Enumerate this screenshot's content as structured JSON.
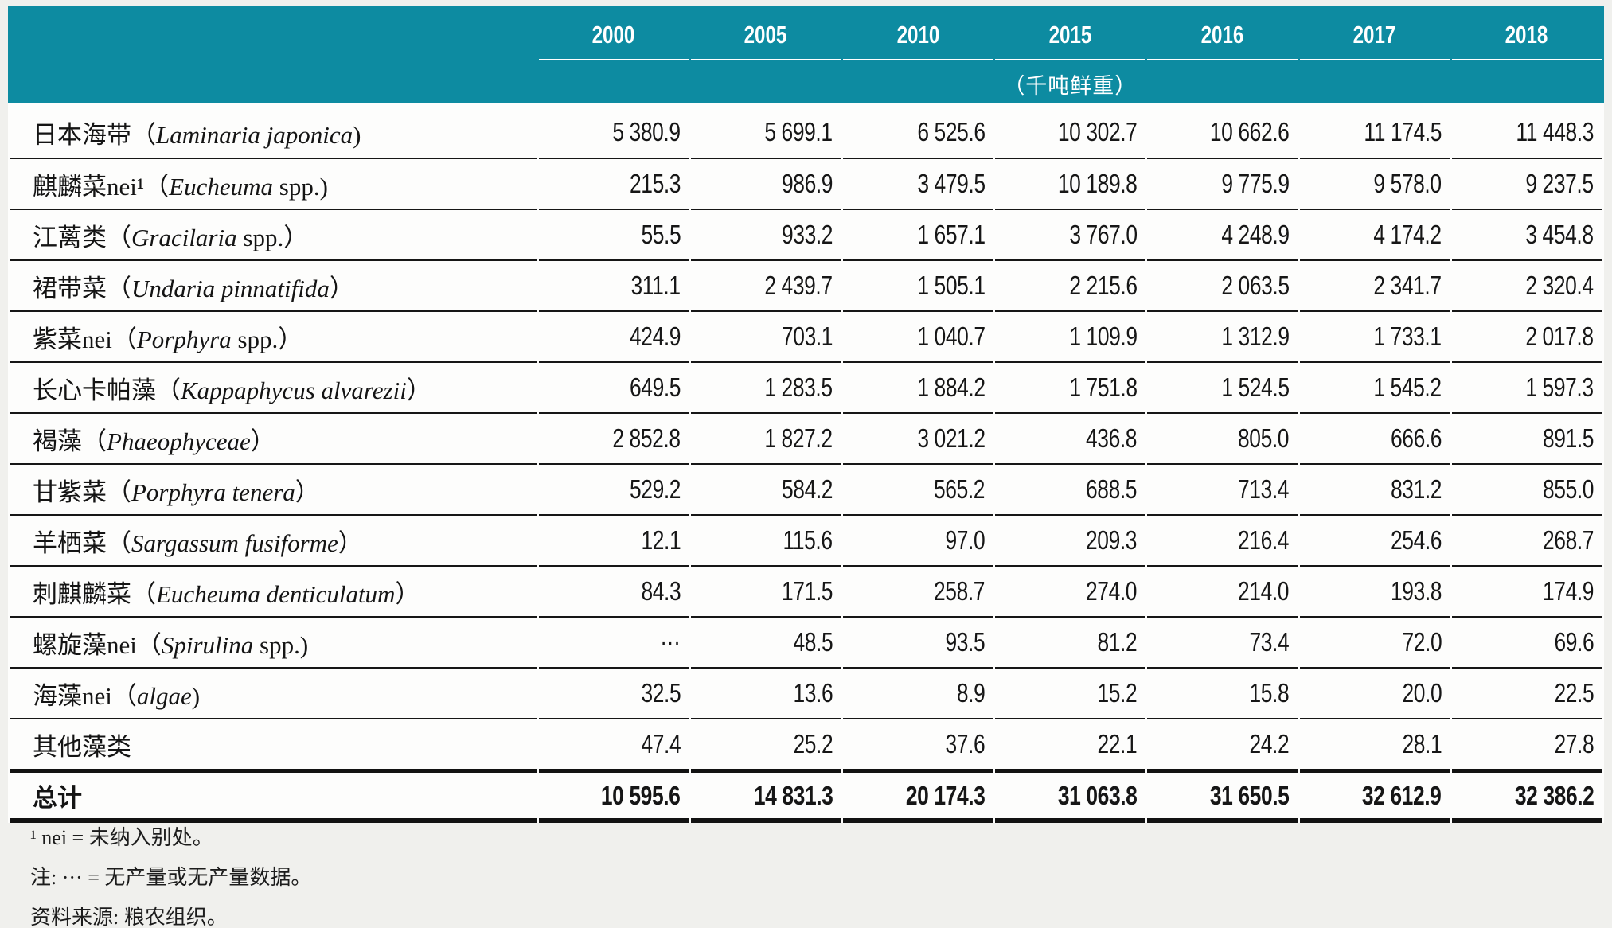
{
  "theme": {
    "header_teal": "#0d8ba1",
    "header_text": "#ffffff",
    "rule_black": "#161616",
    "table_bg": "#fdfdfc",
    "page_bg": "#f0f0ed"
  },
  "chart_data": {
    "type": "table",
    "unit_label": "（千吨鲜重）",
    "years": [
      "2000",
      "2005",
      "2010",
      "2015",
      "2016",
      "2017",
      "2018"
    ],
    "rows": [
      {
        "name_zh": "日本海带（",
        "name_latin": "Laminaria japonica",
        "name_suffix": ")",
        "values": [
          "5 380.9",
          "5 699.1",
          "6 525.6",
          "10 302.7",
          "10 662.6",
          "11 174.5",
          "11 448.3"
        ]
      },
      {
        "name_zh": "麒麟菜nei¹（",
        "name_latin": "Eucheuma",
        "name_suffix": " spp.)",
        "values": [
          "215.3",
          "986.9",
          "3 479.5",
          "10 189.8",
          "9 775.9",
          "9 578.0",
          "9 237.5"
        ]
      },
      {
        "name_zh": "江蓠类（",
        "name_latin": "Gracilaria",
        "name_suffix": " spp.）",
        "values": [
          "55.5",
          "933.2",
          "1 657.1",
          "3 767.0",
          "4 248.9",
          "4 174.2",
          "3 454.8"
        ]
      },
      {
        "name_zh": "裙带菜（",
        "name_latin": "Undaria pinnatifida",
        "name_suffix": "）",
        "values": [
          "311.1",
          "2 439.7",
          "1 505.1",
          "2 215.6",
          "2 063.5",
          "2 341.7",
          "2 320.4"
        ]
      },
      {
        "name_zh": "紫菜nei（",
        "name_latin": "Porphyra",
        "name_suffix": " spp.）",
        "values": [
          "424.9",
          "703.1",
          "1 040.7",
          "1 109.9",
          "1 312.9",
          "1 733.1",
          "2 017.8"
        ]
      },
      {
        "name_zh": "长心卡帕藻（",
        "name_latin": "Kappaphycus alvarezii",
        "name_suffix": "）",
        "values": [
          "649.5",
          "1 283.5",
          "1 884.2",
          "1 751.8",
          "1 524.5",
          "1 545.2",
          "1 597.3"
        ]
      },
      {
        "name_zh": "褐藻（",
        "name_latin": "Phaeophyceae",
        "name_suffix": "）",
        "values": [
          "2 852.8",
          "1 827.2",
          "3 021.2",
          "436.8",
          "805.0",
          "666.6",
          "891.5"
        ]
      },
      {
        "name_zh": "甘紫菜（",
        "name_latin": "Porphyra tenera",
        "name_suffix": "）",
        "values": [
          "529.2",
          "584.2",
          "565.2",
          "688.5",
          "713.4",
          "831.2",
          "855.0"
        ]
      },
      {
        "name_zh": "羊栖菜（",
        "name_latin": "Sargassum fusiforme",
        "name_suffix": "）",
        "values": [
          "12.1",
          "115.6",
          "97.0",
          "209.3",
          "216.4",
          "254.6",
          "268.7"
        ]
      },
      {
        "name_zh": "刺麒麟菜（",
        "name_latin": "Eucheuma denticulatum",
        "name_suffix": "）",
        "values": [
          "84.3",
          "171.5",
          "258.7",
          "274.0",
          "214.0",
          "193.8",
          "174.9"
        ]
      },
      {
        "name_zh": "螺旋藻nei（",
        "name_latin": "Spirulina",
        "name_suffix": " spp.)",
        "values": [
          "···",
          "48.5",
          "93.5",
          "81.2",
          "73.4",
          "72.0",
          "69.6"
        ]
      },
      {
        "name_zh": "海藻nei（",
        "name_latin": "algae",
        "name_suffix": ")",
        "values": [
          "32.5",
          "13.6",
          "8.9",
          "15.2",
          "15.8",
          "20.0",
          "22.5"
        ]
      },
      {
        "name_zh": "其他藻类",
        "name_latin": "",
        "name_suffix": "",
        "values": [
          "47.4",
          "25.2",
          "37.6",
          "22.1",
          "24.2",
          "28.1",
          "27.8"
        ]
      }
    ],
    "total": {
      "label": "总计",
      "values": [
        "10 595.6",
        "14 831.3",
        "20 174.3",
        "31 063.8",
        "31 650.5",
        "32 612.9",
        "32 386.2"
      ]
    },
    "footnotes": [
      "¹ nei = 未纳入别处。",
      "注: ··· = 无产量或无产量数据。",
      "资料来源: 粮农组织。"
    ]
  }
}
